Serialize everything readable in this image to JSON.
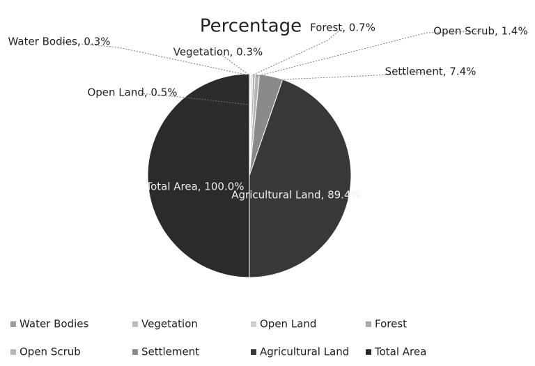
{
  "chart_data": {
    "type": "pie",
    "title": "Percentage",
    "categories": [
      "Water Bodies",
      "Vegetation",
      "Open Land",
      "Forest",
      "Open Scrub",
      "Settlement",
      "Agricultural Land",
      "Total Area"
    ],
    "values": [
      0.3,
      0.3,
      0.5,
      0.7,
      1.4,
      7.4,
      89.4,
      100.0
    ],
    "value_labels": [
      "Water Bodies, 0.3%",
      "Vegetation, 0.3%",
      "Open Land, 0.5%",
      "Forest, 0.7%",
      "Open Scrub, 1.4%",
      "Settlement, 7.4%",
      "Agricultural Land, 89.4%",
      "Total Area, 100.0%"
    ],
    "colors": [
      "#9a9a9a",
      "#bdbdbd",
      "#d0d0d0",
      "#a8a8a8",
      "#b5b5b5",
      "#8a8a8a",
      "#383838",
      "#2b2b2b"
    ],
    "legend": "bottom"
  }
}
